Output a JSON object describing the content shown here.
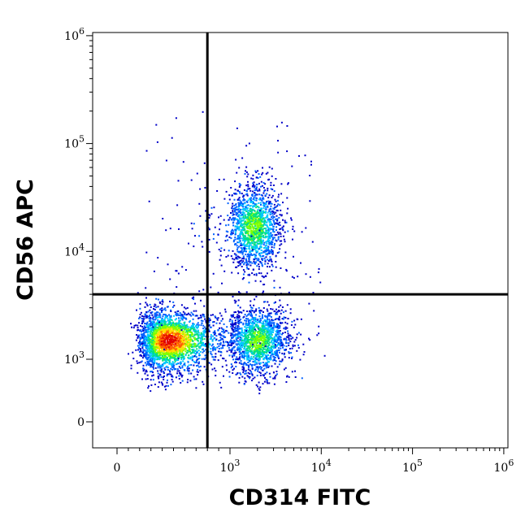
{
  "chart_data": {
    "type": "scatter",
    "subtype": "flow-cytometry-density-dot-plot",
    "xlabel": "CD314 FITC",
    "ylabel": "CD56 APC",
    "x_scale": "biexponential (log with linear region near 0)",
    "y_scale": "biexponential (log with linear region near 0)",
    "xlim": [
      -200,
      1000000
    ],
    "ylim": [
      -200,
      1000000
    ],
    "x_ticks": [
      {
        "value": 0,
        "base": "0",
        "exp": ""
      },
      {
        "value": 1000,
        "base": "10",
        "exp": "3"
      },
      {
        "value": 10000,
        "base": "10",
        "exp": "4"
      },
      {
        "value": 100000,
        "base": "10",
        "exp": "5"
      },
      {
        "value": 1000000,
        "base": "10",
        "exp": "6"
      }
    ],
    "y_ticks": [
      {
        "value": 0,
        "base": "0",
        "exp": ""
      },
      {
        "value": 1000,
        "base": "10",
        "exp": "3"
      },
      {
        "value": 10000,
        "base": "10",
        "exp": "4"
      },
      {
        "value": 100000,
        "base": "10",
        "exp": "5"
      },
      {
        "value": 1000000,
        "base": "10",
        "exp": "6"
      }
    ],
    "quadrant_gates": {
      "x": 800,
      "y": 4000
    },
    "populations": [
      {
        "center_x": 450,
        "center_y": 1500,
        "density": "very high"
      },
      {
        "center_x": 2000,
        "center_y": 1500,
        "density": "medium"
      },
      {
        "center_x": 1800,
        "center_y": 17000,
        "density": "medium"
      }
    ],
    "density_colors": [
      "#0000c8",
      "#0060ff",
      "#00c8ff",
      "#00e080",
      "#80ff00",
      "#ffe000",
      "#ff6000",
      "#e00000"
    ],
    "grid": false,
    "legend": "none"
  }
}
